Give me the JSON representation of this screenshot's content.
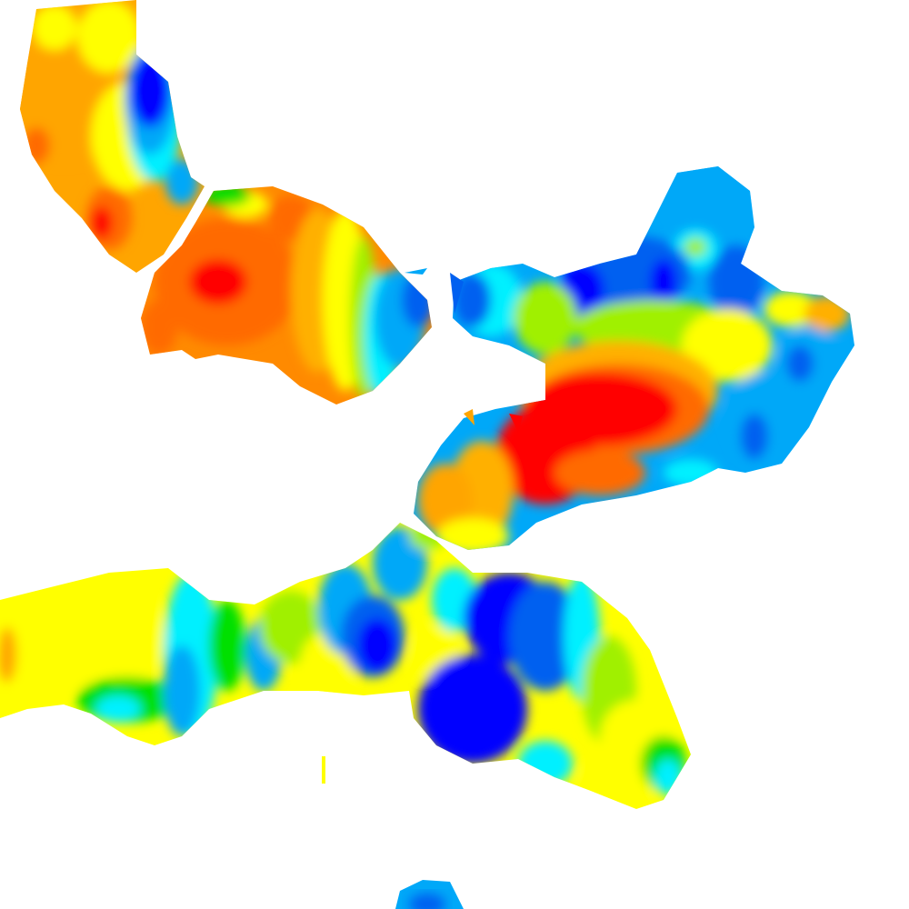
{
  "map": {
    "background_color": "#ffffff",
    "color_ramp": [
      "#0000ff",
      "#0060f0",
      "#00a8f8",
      "#00f0ff",
      "#00e000",
      "#a0f000",
      "#ffff00",
      "#ffb000",
      "#ff6a00",
      "#ff0000"
    ],
    "regions": [
      {
        "name": "northwest-island",
        "dominant_colors": [
          "#ffa500",
          "#ffff00",
          "#00a8f8",
          "#0000ff"
        ]
      },
      {
        "name": "north-central-island",
        "dominant_colors": [
          "#ff6a00",
          "#ff0000",
          "#ffff00",
          "#00a8f8"
        ]
      },
      {
        "name": "east-island",
        "dominant_colors": [
          "#00a8f8",
          "#0060f0",
          "#ff0000",
          "#ff6a00"
        ]
      },
      {
        "name": "south-island",
        "dominant_colors": [
          "#ffff00",
          "#00e000",
          "#0000ff",
          "#00a8f8"
        ]
      },
      {
        "name": "bottom-islet",
        "dominant_colors": [
          "#00a8f8",
          "#0060f0"
        ]
      }
    ]
  }
}
